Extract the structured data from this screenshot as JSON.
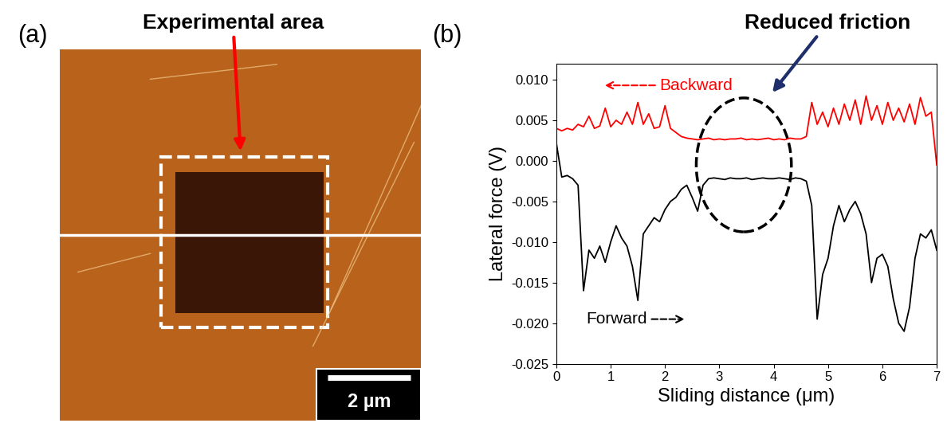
{
  "image_panel": {
    "panel_label": "(a)",
    "annotation": "Experimental area",
    "scale_bar": "2 µm"
  },
  "chart_data": {
    "type": "line",
    "panel_label": "(b)",
    "annotation": "Reduced friction",
    "x_label": "Sliding distance (μm)",
    "y_label": "Lateral force (V)",
    "xlim": [
      0,
      7
    ],
    "ylim": [
      -0.025,
      0.012
    ],
    "xticks": [
      0,
      1,
      2,
      3,
      4,
      5,
      6,
      7
    ],
    "yticks": [
      {
        "value": -0.025,
        "label": "-0.025"
      },
      {
        "value": -0.02,
        "label": "-0.020"
      },
      {
        "value": -0.015,
        "label": "-0.015"
      },
      {
        "value": -0.01,
        "label": "-0.010"
      },
      {
        "value": -0.005,
        "label": "-0.005"
      },
      {
        "value": 0,
        "label": "0.000"
      },
      {
        "value": 0.005,
        "label": "0.005"
      },
      {
        "value": 0.01,
        "label": "0.010"
      }
    ],
    "x": [
      0,
      0.1,
      0.2,
      0.3,
      0.4,
      0.5,
      0.6,
      0.7,
      0.8,
      0.9,
      1.0,
      1.1,
      1.2,
      1.3,
      1.4,
      1.5,
      1.6,
      1.7,
      1.8,
      1.9,
      2.0,
      2.1,
      2.2,
      2.3,
      2.4,
      2.5,
      2.6,
      2.7,
      2.8,
      2.9,
      3.0,
      3.1,
      3.2,
      3.3,
      3.4,
      3.5,
      3.6,
      3.7,
      3.8,
      3.9,
      4.0,
      4.1,
      4.2,
      4.3,
      4.4,
      4.5,
      4.6,
      4.7,
      4.8,
      4.9,
      5.0,
      5.1,
      5.2,
      5.3,
      5.4,
      5.5,
      5.6,
      5.7,
      5.8,
      5.9,
      6.0,
      6.1,
      6.2,
      6.3,
      6.4,
      6.5,
      6.6,
      6.7,
      6.8,
      6.9,
      7.0
    ],
    "series": [
      {
        "name": "Backward",
        "color": "#ff0000",
        "values": [
          0.004,
          0.0037,
          0.004,
          0.0038,
          0.0045,
          0.0042,
          0.0055,
          0.004,
          0.0043,
          0.0065,
          0.0042,
          0.005,
          0.0045,
          0.006,
          0.0045,
          0.0072,
          0.0045,
          0.0058,
          0.004,
          0.0042,
          0.0068,
          0.004,
          0.0035,
          0.003,
          0.0028,
          0.0027,
          0.0026,
          0.0027,
          0.0028,
          0.0026,
          0.0027,
          0.0026,
          0.0027,
          0.0027,
          0.0028,
          0.0026,
          0.0027,
          0.0026,
          0.0027,
          0.0028,
          0.0026,
          0.0027,
          0.0026,
          0.0028,
          0.0027,
          0.0027,
          0.003,
          0.0072,
          0.0045,
          0.006,
          0.0042,
          0.0065,
          0.0045,
          0.007,
          0.005,
          0.0075,
          0.0045,
          0.008,
          0.005,
          0.0068,
          0.0045,
          0.0072,
          0.005,
          0.0065,
          0.0048,
          0.007,
          0.0045,
          0.0078,
          0.0055,
          0.006,
          -0.0005
        ]
      },
      {
        "name": "Forward",
        "color": "#000000",
        "values": [
          0.0022,
          -0.002,
          -0.0018,
          -0.0022,
          -0.003,
          -0.016,
          -0.011,
          -0.012,
          -0.0105,
          -0.0125,
          -0.01,
          -0.008,
          -0.0095,
          -0.0105,
          -0.013,
          -0.0172,
          -0.009,
          -0.008,
          -0.007,
          -0.0075,
          -0.006,
          -0.005,
          -0.0045,
          -0.0035,
          -0.003,
          -0.0045,
          -0.0062,
          -0.003,
          -0.0022,
          -0.0021,
          -0.0022,
          -0.0023,
          -0.0021,
          -0.0022,
          -0.0022,
          -0.0021,
          -0.0023,
          -0.0022,
          -0.0021,
          -0.0022,
          -0.0022,
          -0.0021,
          -0.0022,
          -0.0023,
          -0.0021,
          -0.0022,
          -0.0025,
          -0.0055,
          -0.0195,
          -0.014,
          -0.012,
          -0.008,
          -0.0055,
          -0.0075,
          -0.006,
          -0.005,
          -0.0065,
          -0.009,
          -0.015,
          -0.012,
          -0.0115,
          -0.013,
          -0.017,
          -0.02,
          -0.021,
          -0.018,
          -0.012,
          -0.009,
          -0.0095,
          -0.0085,
          -0.011
        ]
      }
    ]
  }
}
